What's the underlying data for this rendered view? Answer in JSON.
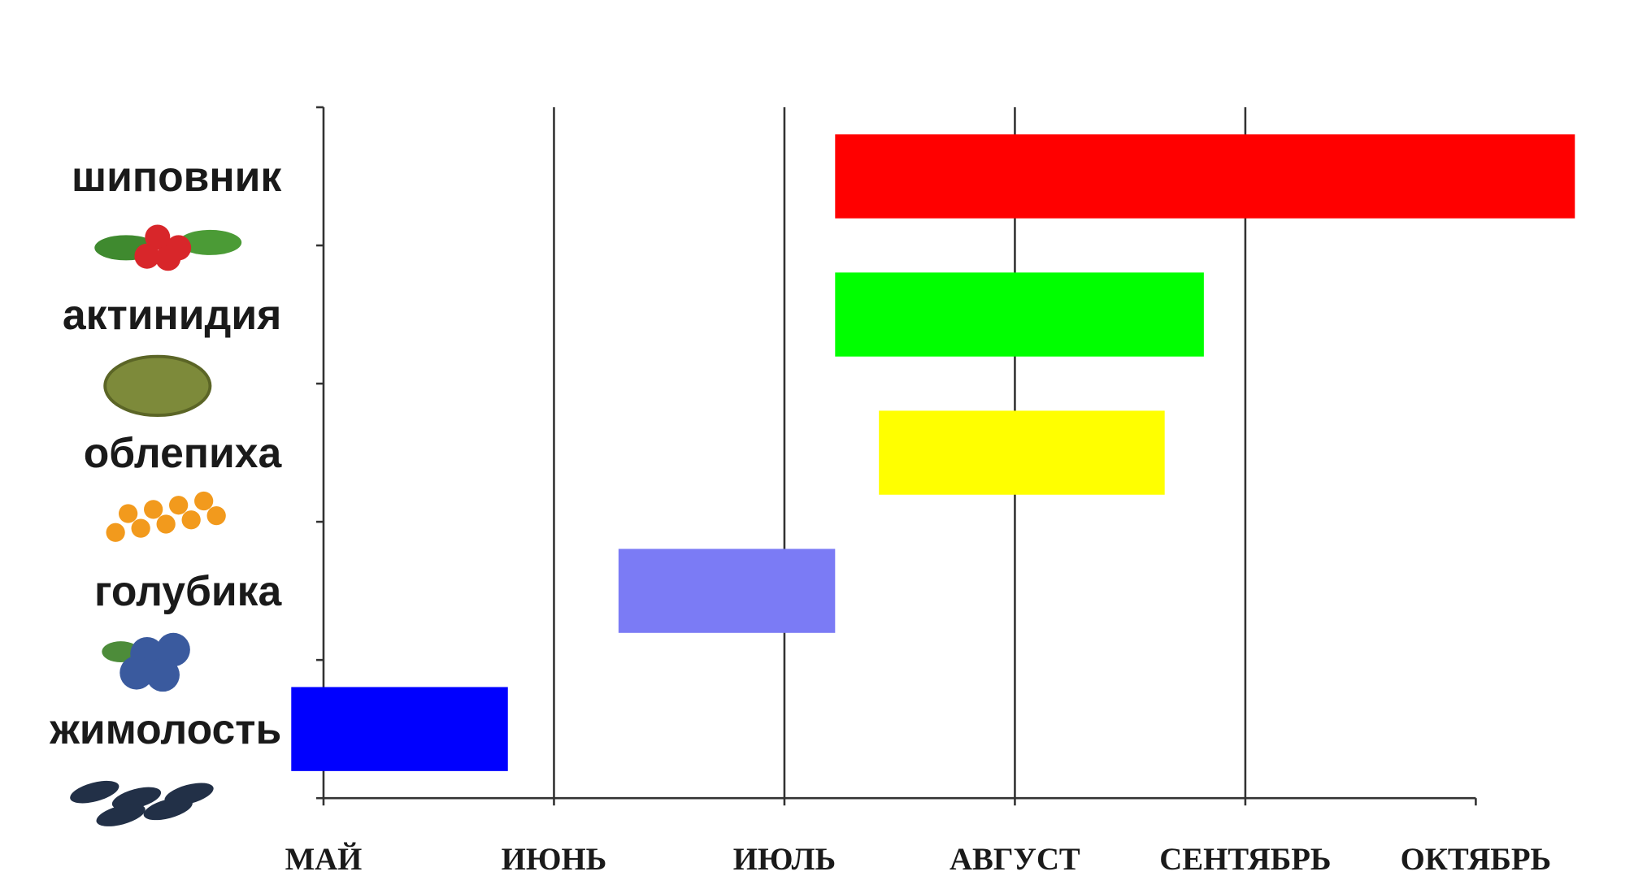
{
  "chart_data": {
    "type": "floating-bar",
    "categories": [
      "шиповник",
      "актинидия",
      "облепиха",
      "голубика",
      "жимолость"
    ],
    "start": [
      2.22,
      2.22,
      2.41,
      1.28,
      -0.14
    ],
    "end": [
      5.43,
      3.82,
      3.65,
      2.22,
      0.8
    ],
    "colors": [
      "#ff0000",
      "#00ff00",
      "#ffff00",
      "#7b7bf5",
      "#0000ff"
    ],
    "xlim": [
      0,
      5
    ],
    "xticks": [
      {
        "value": 0,
        "label": "МАЙ"
      },
      {
        "value": 1,
        "label": "ИЮНЬ"
      },
      {
        "value": 2,
        "label": "ИЮЛЬ"
      },
      {
        "value": 3,
        "label": "АВГУСТ"
      },
      {
        "value": 4,
        "label": "СЕНТЯБРЬ"
      },
      {
        "value": 5,
        "label": "ОКТЯБРЬ"
      }
    ],
    "grid": true
  }
}
